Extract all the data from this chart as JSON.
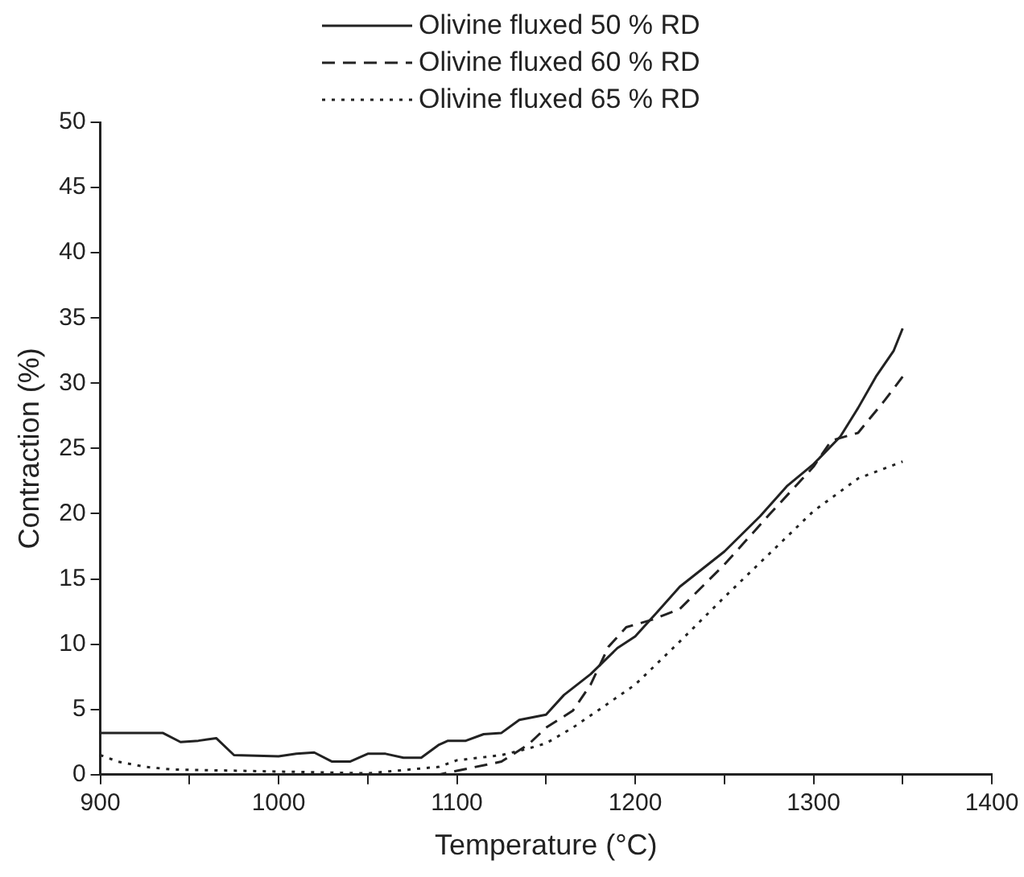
{
  "chart_data": {
    "type": "line",
    "xlabel": "Temperature (°C)",
    "ylabel": "Contraction (%)",
    "legend": "top",
    "grid": false,
    "marker": "none",
    "xlim": [
      900,
      1400
    ],
    "xticks": [
      900,
      {
        "value": 950,
        "label": null
      },
      1000,
      {
        "value": 1050,
        "label": null
      },
      1100,
      {
        "value": 1150,
        "label": null
      },
      1200,
      {
        "value": 1250,
        "label": null
      },
      1300,
      {
        "value": 1350,
        "label": null
      },
      1400
    ],
    "ylim": [
      0,
      50
    ],
    "yticks": [
      0,
      5,
      10,
      15,
      20,
      25,
      30,
      35,
      40,
      45,
      50
    ],
    "series": [
      {
        "name": "Olivine fluxed 50 % RD",
        "color": "#222222",
        "line_style": "solid",
        "x": [
          900,
          935,
          945,
          955,
          965,
          975,
          1000,
          1010,
          1020,
          1030,
          1040,
          1050,
          1060,
          1070,
          1080,
          1090,
          1095,
          1105,
          1115,
          1125,
          1135,
          1150,
          1160,
          1175,
          1190,
          1200,
          1210,
          1225,
          1250,
          1270,
          1285,
          1300,
          1315,
          1325,
          1335,
          1345,
          1350
        ],
        "values": [
          3.2,
          3.2,
          2.5,
          2.6,
          2.8,
          1.5,
          1.4,
          1.6,
          1.7,
          1.0,
          1.0,
          1.6,
          1.6,
          1.3,
          1.3,
          2.3,
          2.6,
          2.6,
          3.1,
          3.2,
          4.2,
          4.6,
          6.1,
          7.7,
          9.7,
          10.6,
          12.1,
          14.4,
          17.1,
          19.8,
          22.1,
          23.8,
          25.9,
          28.1,
          30.5,
          32.5,
          34.2
        ]
      },
      {
        "name": "Olivine fluxed 60 % RD",
        "color": "#222222",
        "line_style": "dashed",
        "x": [
          1040,
          1060,
          1090,
          1100,
          1125,
          1140,
          1150,
          1165,
          1175,
          1185,
          1195,
          1210,
          1225,
          1250,
          1275,
          1300,
          1310,
          1325,
          1340,
          1350
        ],
        "values": [
          0,
          0,
          0,
          0.3,
          1,
          2.3,
          3.6,
          4.9,
          6.9,
          9.8,
          11.3,
          11.9,
          12.7,
          16.1,
          19.9,
          23.6,
          25.6,
          26.2,
          28.7,
          30.5
        ]
      },
      {
        "name": "Olivine fluxed 65 % RD",
        "color": "#222222",
        "line_style": "dotted",
        "x": [
          900,
          910,
          925,
          940,
          1050,
          1090,
          1100,
          1125,
          1140,
          1150,
          1165,
          1180,
          1200,
          1225,
          1250,
          1275,
          1300,
          1325,
          1350
        ],
        "values": [
          1.5,
          1.0,
          0.6,
          0.4,
          0.1,
          0.6,
          1.1,
          1.5,
          2,
          2.4,
          3.6,
          5.0,
          6.9,
          10.2,
          13.6,
          16.9,
          20.2,
          22.7,
          24.0
        ]
      }
    ]
  }
}
